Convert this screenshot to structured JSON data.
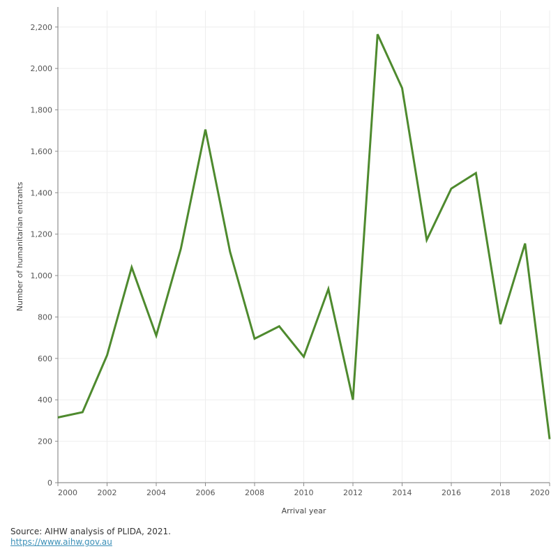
{
  "chart_data": {
    "type": "line",
    "xlabel": "Arrival year",
    "ylabel": "Number of humanitarian entrants",
    "xlim": [
      2000,
      2020
    ],
    "ylim": [
      0,
      2280
    ],
    "x_ticks": [
      2000,
      2002,
      2004,
      2006,
      2008,
      2010,
      2012,
      2014,
      2016,
      2018,
      2020
    ],
    "y_ticks": [
      0,
      200,
      400,
      600,
      800,
      1000,
      1200,
      1400,
      1600,
      1800,
      2000,
      2200
    ],
    "y_tick_labels": [
      "0",
      "200",
      "400",
      "600",
      "800",
      "1,000",
      "1,200",
      "1,400",
      "1,600",
      "1,800",
      "2,000",
      "2,200"
    ],
    "grid": true,
    "series": [
      {
        "color": "#4e8a2e",
        "x": [
          2000,
          2001,
          2002,
          2003,
          2004,
          2005,
          2006,
          2007,
          2008,
          2009,
          2010,
          2011,
          2012,
          2013,
          2014,
          2015,
          2016,
          2017,
          2018,
          2019,
          2020
        ],
        "values": [
          315,
          340,
          615,
          1040,
          710,
          1130,
          1705,
          1115,
          695,
          755,
          608,
          935,
          400,
          2165,
          1905,
          1172,
          1420,
          1495,
          765,
          1155,
          210
        ]
      }
    ]
  },
  "footer": {
    "source": "Source: AIHW analysis of PLIDA, 2021.",
    "link": "https://www.aihw.gov.au"
  }
}
